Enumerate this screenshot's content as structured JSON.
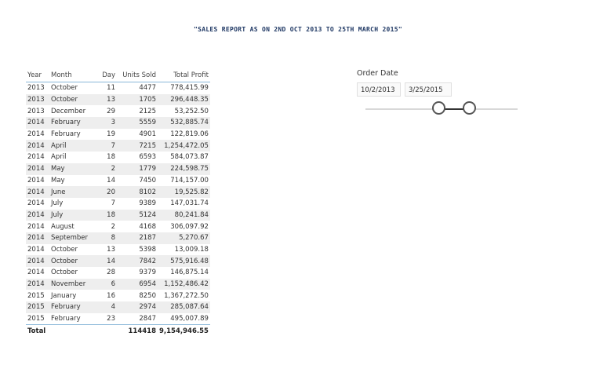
{
  "report_title": "\"SALES REPORT AS ON 2ND OCT 2013 TO 25TH MARCH 2015\"",
  "table": {
    "headers": {
      "year": "Year",
      "month": "Month",
      "day": "Day",
      "units": "Units Sold",
      "profit": "Total Profit"
    },
    "rows": [
      {
        "year": "2013",
        "month": "October",
        "day": "11",
        "units": "4477",
        "profit": "778,415.99"
      },
      {
        "year": "2013",
        "month": "October",
        "day": "13",
        "units": "1705",
        "profit": "296,448.35"
      },
      {
        "year": "2013",
        "month": "December",
        "day": "29",
        "units": "2125",
        "profit": "53,252.50"
      },
      {
        "year": "2014",
        "month": "February",
        "day": "3",
        "units": "5559",
        "profit": "532,885.74"
      },
      {
        "year": "2014",
        "month": "February",
        "day": "19",
        "units": "4901",
        "profit": "122,819.06"
      },
      {
        "year": "2014",
        "month": "April",
        "day": "7",
        "units": "7215",
        "profit": "1,254,472.05"
      },
      {
        "year": "2014",
        "month": "April",
        "day": "18",
        "units": "6593",
        "profit": "584,073.87"
      },
      {
        "year": "2014",
        "month": "May",
        "day": "2",
        "units": "1779",
        "profit": "224,598.75"
      },
      {
        "year": "2014",
        "month": "May",
        "day": "14",
        "units": "7450",
        "profit": "714,157.00"
      },
      {
        "year": "2014",
        "month": "June",
        "day": "20",
        "units": "8102",
        "profit": "19,525.82"
      },
      {
        "year": "2014",
        "month": "July",
        "day": "7",
        "units": "9389",
        "profit": "147,031.74"
      },
      {
        "year": "2014",
        "month": "July",
        "day": "18",
        "units": "5124",
        "profit": "80,241.84"
      },
      {
        "year": "2014",
        "month": "August",
        "day": "2",
        "units": "4168",
        "profit": "306,097.92"
      },
      {
        "year": "2014",
        "month": "September",
        "day": "8",
        "units": "2187",
        "profit": "5,270.67"
      },
      {
        "year": "2014",
        "month": "October",
        "day": "13",
        "units": "5398",
        "profit": "13,009.18"
      },
      {
        "year": "2014",
        "month": "October",
        "day": "14",
        "units": "7842",
        "profit": "575,916.48"
      },
      {
        "year": "2014",
        "month": "October",
        "day": "28",
        "units": "9379",
        "profit": "146,875.14"
      },
      {
        "year": "2014",
        "month": "November",
        "day": "6",
        "units": "6954",
        "profit": "1,152,486.42"
      },
      {
        "year": "2015",
        "month": "January",
        "day": "16",
        "units": "8250",
        "profit": "1,367,272.50"
      },
      {
        "year": "2015",
        "month": "February",
        "day": "4",
        "units": "2974",
        "profit": "285,087.64"
      },
      {
        "year": "2015",
        "month": "February",
        "day": "23",
        "units": "2847",
        "profit": "495,007.89"
      }
    ],
    "total": {
      "label": "Total",
      "units": "114418",
      "profit": "9,154,946.55"
    }
  },
  "slicer": {
    "title": "Order Date",
    "start_date": "10/2/2013",
    "end_date": "3/25/2015",
    "handle_start_fraction": 0.49,
    "handle_end_fraction": 0.69
  },
  "colors": {
    "title": "#1f3864",
    "header_rule": "#8ab7d9",
    "band": "#eeeeee"
  }
}
